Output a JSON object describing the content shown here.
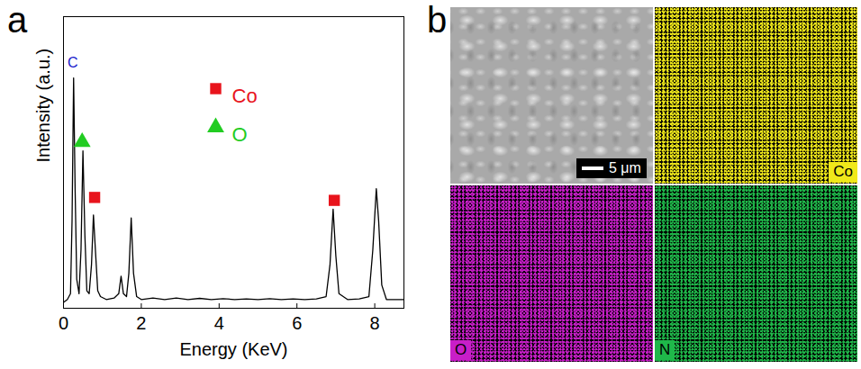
{
  "chart_data": {
    "type": "line",
    "panel_label": "a",
    "x_label": "Energy (KeV)",
    "y_label": "Intensity (a.u.)",
    "xlim": [
      0,
      8.75
    ],
    "xticks": [
      0,
      2,
      4,
      6,
      8
    ],
    "ylim": [
      0,
      1
    ],
    "yticks": [],
    "tick_labels": "x",
    "grid": false,
    "legend": "top",
    "color": "#000000",
    "x": [
      0.0,
      0.1,
      0.18,
      0.22,
      0.26,
      0.3,
      0.34,
      0.4,
      0.45,
      0.5,
      0.55,
      0.6,
      0.66,
      0.72,
      0.77,
      0.82,
      0.88,
      0.95,
      1.1,
      1.3,
      1.42,
      1.48,
      1.54,
      1.62,
      1.68,
      1.74,
      1.8,
      1.88,
      2.0,
      2.3,
      2.6,
      2.9,
      3.2,
      3.5,
      3.8,
      4.1,
      4.4,
      4.7,
      5.0,
      5.3,
      5.6,
      5.9,
      6.2,
      6.5,
      6.75,
      6.85,
      6.93,
      7.0,
      7.08,
      7.3,
      7.6,
      7.85,
      7.95,
      8.04,
      8.1,
      8.18,
      8.3,
      8.5,
      8.75
    ],
    "values": [
      0.02,
      0.03,
      0.05,
      0.3,
      0.79,
      0.4,
      0.1,
      0.05,
      0.2,
      0.54,
      0.25,
      0.06,
      0.05,
      0.15,
      0.32,
      0.2,
      0.06,
      0.04,
      0.03,
      0.035,
      0.05,
      0.11,
      0.05,
      0.04,
      0.12,
      0.31,
      0.12,
      0.04,
      0.03,
      0.035,
      0.03,
      0.035,
      0.03,
      0.034,
      0.03,
      0.033,
      0.03,
      0.032,
      0.03,
      0.033,
      0.03,
      0.032,
      0.03,
      0.032,
      0.04,
      0.15,
      0.34,
      0.18,
      0.05,
      0.03,
      0.032,
      0.04,
      0.2,
      0.41,
      0.3,
      0.08,
      0.03,
      0.03,
      0.03
    ],
    "series": [
      {
        "name": "Co",
        "type": "scatter",
        "color": "#e8141c",
        "marker": "square",
        "x": [
          0.8,
          6.96
        ],
        "values": [
          0.38,
          0.37
        ]
      },
      {
        "name": "O",
        "type": "scatter",
        "color": "#22cc22",
        "marker": "triangle",
        "x": [
          0.48
        ],
        "values": [
          0.57
        ]
      }
    ],
    "annotations": [
      {
        "text": "C",
        "x": 0.24,
        "y": 0.84,
        "color": "#1a1acc"
      }
    ]
  },
  "figure": {
    "panel_label": "b",
    "maps": [
      {
        "scale_bar": "5 μm"
      },
      {
        "label": "Co",
        "color": "#f0e81a"
      },
      {
        "label": "O",
        "color": "#c81ec8"
      },
      {
        "label": "N",
        "color": "#1fb84a"
      }
    ]
  }
}
